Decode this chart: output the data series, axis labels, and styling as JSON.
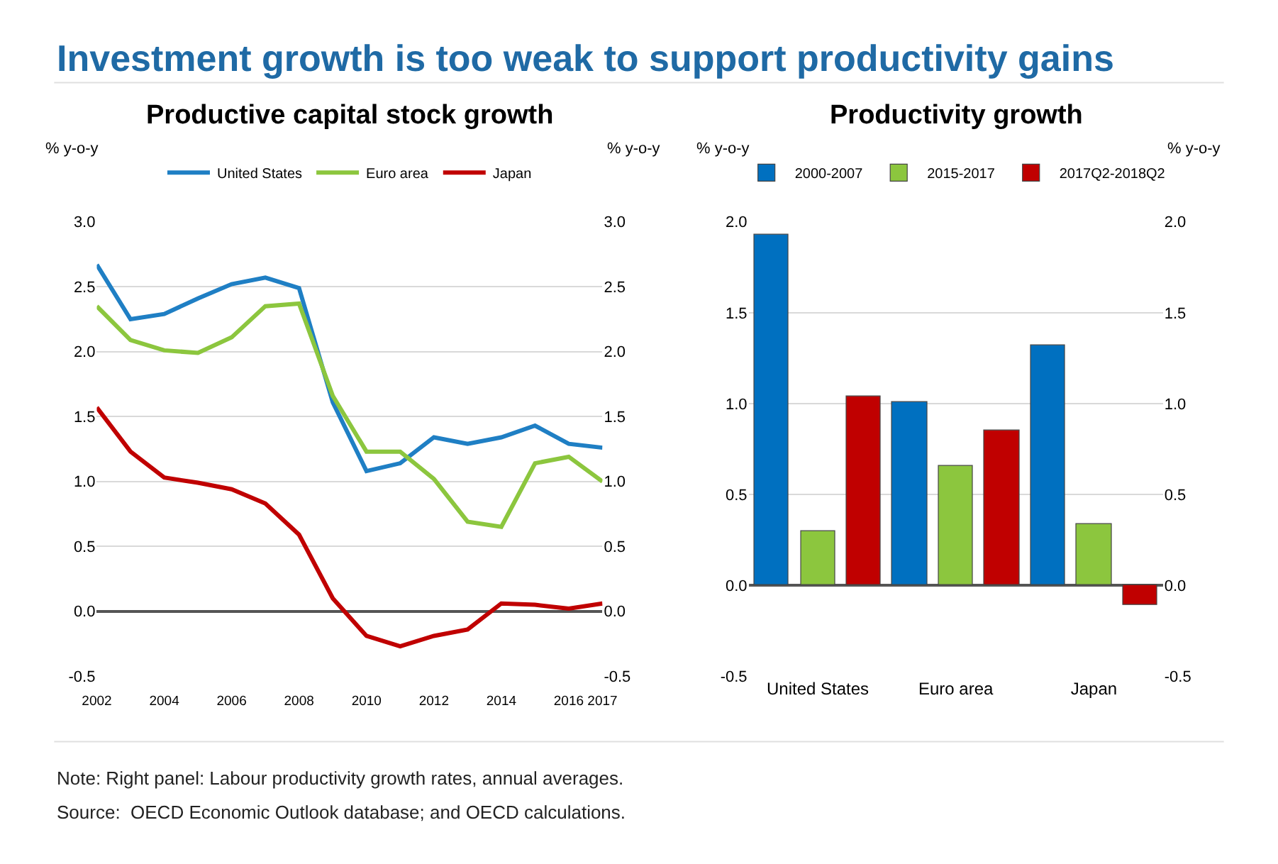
{
  "chart_data": [
    {
      "type": "other",
      "title": "Investment growth is too weak to support productivity gains",
      "annotations": [
        "Note: Right panel: Labour productivity growth rates, annual averages.",
        "Source:  OECD Economic Outlook database; and OECD calculations."
      ]
    },
    {
      "type": "line",
      "title": "Productive capital stock growth",
      "ylabel": "% y-o-y",
      "y2label": "% y-o-y",
      "x": [
        2002,
        2003,
        2004,
        2005,
        2006,
        2007,
        2008,
        2009,
        2010,
        2011,
        2012,
        2013,
        2014,
        2015,
        2016,
        2017
      ],
      "series": [
        {
          "name": "United States",
          "color": "#1f7fc4",
          "values": [
            2.67,
            2.25,
            2.29,
            2.41,
            2.52,
            2.57,
            2.49,
            1.61,
            1.08,
            1.14,
            1.34,
            1.29,
            1.34,
            1.43,
            1.29,
            1.26
          ]
        },
        {
          "name": "Euro area",
          "color": "#8cc63e",
          "values": [
            2.35,
            2.09,
            2.01,
            1.99,
            2.11,
            2.35,
            2.37,
            1.66,
            1.23,
            1.23,
            1.02,
            0.69,
            0.65,
            1.14,
            1.19,
            1.0
          ]
        },
        {
          "name": "Japan",
          "color": "#c00000",
          "values": [
            1.57,
            1.23,
            1.03,
            0.99,
            0.94,
            0.83,
            0.59,
            0.1,
            -0.19,
            -0.27,
            -0.19,
            -0.14,
            0.06,
            0.05,
            0.02,
            0.06
          ]
        }
      ],
      "xlim": [
        2002,
        2017
      ],
      "xticks": [
        2002,
        2004,
        2006,
        2008,
        2010,
        2012,
        2014,
        2016,
        2017
      ],
      "ylim": [
        -0.5,
        3.0
      ],
      "yticks": [
        {
          "value": -0.5,
          "label": "-0.5"
        },
        {
          "value": 0,
          "label": "0.0"
        },
        {
          "value": 0.5,
          "label": "0.5"
        },
        {
          "value": 1,
          "label": "1.0"
        },
        {
          "value": 1.5,
          "label": "1.5"
        },
        {
          "value": 2,
          "label": "2.0"
        },
        {
          "value": 2.5,
          "label": "2.5"
        },
        {
          "value": 3,
          "label": "3.0"
        }
      ],
      "y2lim": [
        -0.5,
        3.0
      ],
      "y2ticks": [
        {
          "value": -0.5,
          "label": "-0.5"
        },
        {
          "value": 0,
          "label": "0.0"
        },
        {
          "value": 0.5,
          "label": "0.5"
        },
        {
          "value": 1,
          "label": "1.0"
        },
        {
          "value": 1.5,
          "label": "1.5"
        },
        {
          "value": 2,
          "label": "2.0"
        },
        {
          "value": 2.5,
          "label": "2.5"
        },
        {
          "value": 3,
          "label": "3.0"
        }
      ],
      "grid": "y",
      "legend": "top",
      "marker": "none",
      "line_style": "solid"
    },
    {
      "type": "bar",
      "title": "Productivity growth",
      "ylabel": "% y-o-y",
      "y2label": "% y-o-y",
      "categories": [
        "United States",
        "Euro area",
        "Japan"
      ],
      "series": [
        {
          "name": "2000-2007",
          "color": "#0070c0",
          "values": [
            1.93,
            1.01,
            1.32
          ]
        },
        {
          "name": "2015-2017",
          "color": "#8cc63e",
          "values": [
            0.3,
            0.66,
            0.34
          ]
        },
        {
          "name": "2017Q2-2018Q2",
          "color": "#c00000",
          "values": [
            1.04,
            0.85,
            -0.11
          ]
        }
      ],
      "ylim": [
        -0.5,
        2.0
      ],
      "yticks": [
        {
          "value": -0.5,
          "label": "-0.5"
        },
        {
          "value": 0,
          "label": "0.0"
        },
        {
          "value": 0.5,
          "label": "0.5"
        },
        {
          "value": 1,
          "label": "1.0"
        },
        {
          "value": 1.5,
          "label": "1.5"
        },
        {
          "value": 2,
          "label": "2.0"
        }
      ],
      "y2lim": [
        -0.5,
        2.0
      ],
      "y2ticks": [
        {
          "value": -0.5,
          "label": "-0.5"
        },
        {
          "value": 0,
          "label": "0.0"
        },
        {
          "value": 0.5,
          "label": "0.5"
        },
        {
          "value": 1,
          "label": "1.0"
        },
        {
          "value": 1.5,
          "label": "1.5"
        },
        {
          "value": 2,
          "label": "2.0"
        }
      ],
      "grid": "y",
      "legend": "top"
    }
  ]
}
